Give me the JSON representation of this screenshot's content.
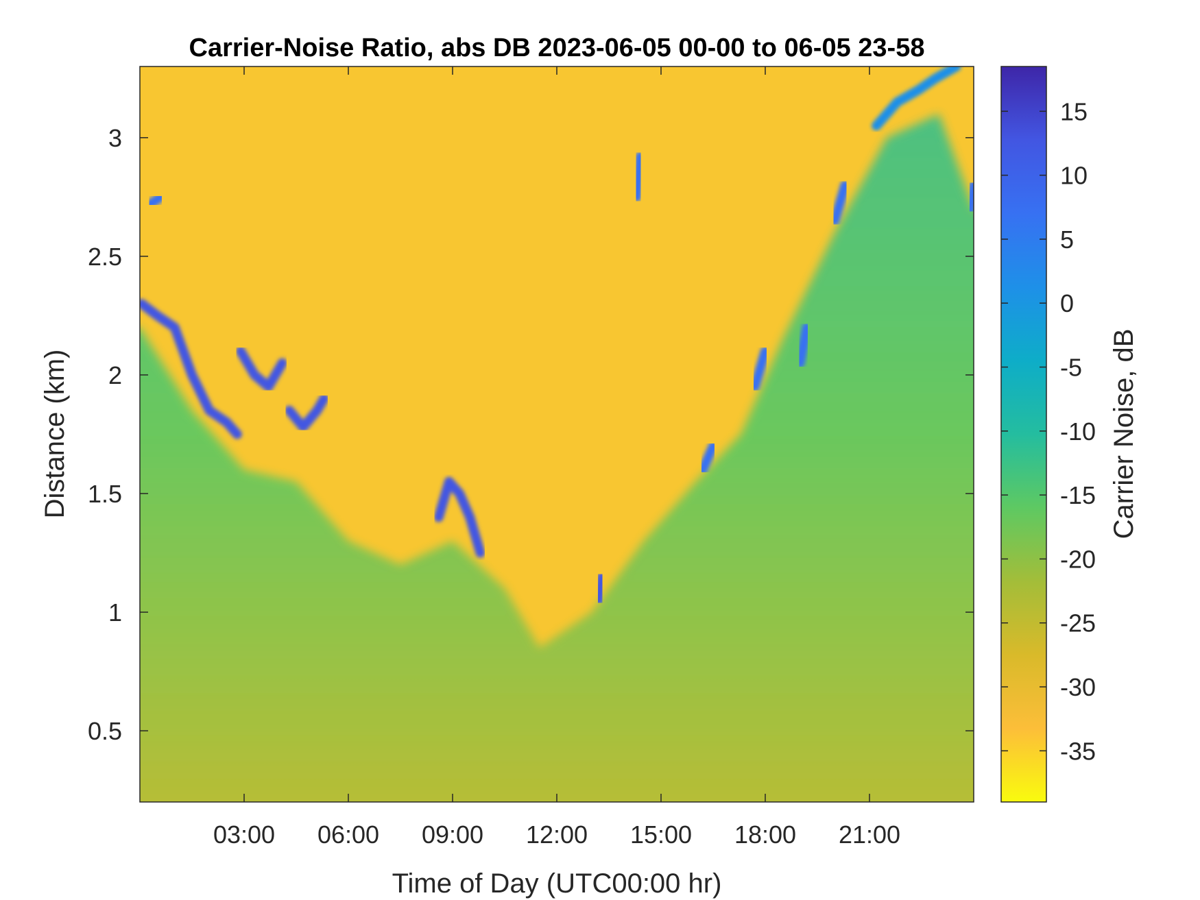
{
  "chart_data": {
    "type": "heatmap",
    "title": "Carrier-Noise Ratio, abs DB 2023-06-05 00-00 to 06-05 23-58",
    "xlabel": "Time of Day (UTC00:00 hr)",
    "ylabel": "Distance (km)",
    "xlim_hours": [
      0,
      24
    ],
    "ylim_km": [
      0.2,
      3.3
    ],
    "x_ticks": [
      {
        "value": 3,
        "label": "03:00"
      },
      {
        "value": 6,
        "label": "06:00"
      },
      {
        "value": 9,
        "label": "09:00"
      },
      {
        "value": 12,
        "label": "12:00"
      },
      {
        "value": 15,
        "label": "15:00"
      },
      {
        "value": 18,
        "label": "18:00"
      },
      {
        "value": 21,
        "label": "21:00"
      }
    ],
    "y_ticks": [
      {
        "value": 0.5,
        "label": "0.5"
      },
      {
        "value": 1,
        "label": "1"
      },
      {
        "value": 1.5,
        "label": "1.5"
      },
      {
        "value": 2,
        "label": "2"
      },
      {
        "value": 2.5,
        "label": "2.5"
      },
      {
        "value": 3,
        "label": "3"
      }
    ],
    "colorbar": {
      "label": "Carrier Noise, dB",
      "range": [
        -39,
        18.5
      ],
      "colormap": [
        "#f9fb0e",
        "#fcbe39",
        "#d9ba2a",
        "#a3bd39",
        "#5ec962",
        "#24bd9f",
        "#0eadc8",
        "#1e90e8",
        "#3771f2",
        "#4256e2",
        "#3e26a8"
      ],
      "ticks": [
        {
          "value": 15,
          "label": "15"
        },
        {
          "value": 10,
          "label": "10"
        },
        {
          "value": 5,
          "label": "5"
        },
        {
          "value": 0,
          "label": "0"
        },
        {
          "value": -5,
          "label": "-5"
        },
        {
          "value": -10,
          "label": "-10"
        },
        {
          "value": -15,
          "label": "-15"
        },
        {
          "value": -20,
          "label": "-20"
        },
        {
          "value": -25,
          "label": "-25"
        },
        {
          "value": -30,
          "label": "-30"
        },
        {
          "value": -35,
          "label": "-35"
        }
      ]
    },
    "background_boundary_km": [
      {
        "hour": 0,
        "km": 2.2
      },
      {
        "hour": 1.5,
        "km": 1.85
      },
      {
        "hour": 3,
        "km": 1.6
      },
      {
        "hour": 4.5,
        "km": 1.55
      },
      {
        "hour": 6,
        "km": 1.3
      },
      {
        "hour": 7.5,
        "km": 1.2
      },
      {
        "hour": 9,
        "km": 1.3
      },
      {
        "hour": 10.5,
        "km": 1.1
      },
      {
        "hour": 11.5,
        "km": 0.85
      },
      {
        "hour": 13,
        "km": 1.0
      },
      {
        "hour": 14.5,
        "km": 1.3
      },
      {
        "hour": 16,
        "km": 1.55
      },
      {
        "hour": 17.3,
        "km": 1.75
      },
      {
        "hour": 18.5,
        "km": 2.15
      },
      {
        "hour": 20,
        "km": 2.6
      },
      {
        "hour": 21.5,
        "km": 3.0
      },
      {
        "hour": 23,
        "km": 3.1
      },
      {
        "hour": 24,
        "km": 2.7
      }
    ],
    "strong_return_segments": [
      {
        "points": [
          [
            0.05,
            2.3
          ],
          [
            0.5,
            2.25
          ],
          [
            1.0,
            2.2
          ],
          [
            1.5,
            2.0
          ],
          [
            2.0,
            1.85
          ],
          [
            2.5,
            1.8
          ],
          [
            2.8,
            1.75
          ]
        ],
        "db": 14
      },
      {
        "points": [
          [
            0.3,
            2.72
          ],
          [
            0.6,
            2.75
          ]
        ],
        "db": 8
      },
      {
        "points": [
          [
            2.9,
            2.1
          ],
          [
            3.3,
            2.0
          ],
          [
            3.7,
            1.95
          ],
          [
            4.1,
            2.05
          ]
        ],
        "db": 12
      },
      {
        "points": [
          [
            4.3,
            1.85
          ],
          [
            4.7,
            1.78
          ],
          [
            5.1,
            1.85
          ],
          [
            5.3,
            1.9
          ]
        ],
        "db": 14
      },
      {
        "points": [
          [
            8.6,
            1.4
          ],
          [
            8.9,
            1.55
          ],
          [
            9.2,
            1.5
          ],
          [
            9.5,
            1.4
          ],
          [
            9.8,
            1.25
          ]
        ],
        "db": 15
      },
      {
        "points": [
          [
            13.2,
            1.05
          ],
          [
            13.3,
            1.15
          ]
        ],
        "db": 14
      },
      {
        "points": [
          [
            14.3,
            2.75
          ],
          [
            14.4,
            2.92
          ]
        ],
        "db": 8
      },
      {
        "points": [
          [
            16.2,
            1.6
          ],
          [
            16.5,
            1.7
          ]
        ],
        "db": 8
      },
      {
        "points": [
          [
            17.7,
            1.95
          ],
          [
            18.0,
            2.1
          ]
        ],
        "db": 9
      },
      {
        "points": [
          [
            19.0,
            2.05
          ],
          [
            19.2,
            2.2
          ]
        ],
        "db": 8
      },
      {
        "points": [
          [
            20.0,
            2.65
          ],
          [
            20.3,
            2.8
          ]
        ],
        "db": 6
      },
      {
        "points": [
          [
            21.2,
            3.05
          ],
          [
            21.8,
            3.15
          ],
          [
            22.4,
            3.2
          ],
          [
            22.9,
            3.25
          ],
          [
            23.5,
            3.3
          ]
        ],
        "db": 4
      },
      {
        "points": [
          [
            23.9,
            2.7
          ],
          [
            24.0,
            2.8
          ]
        ],
        "db": 6
      }
    ]
  }
}
